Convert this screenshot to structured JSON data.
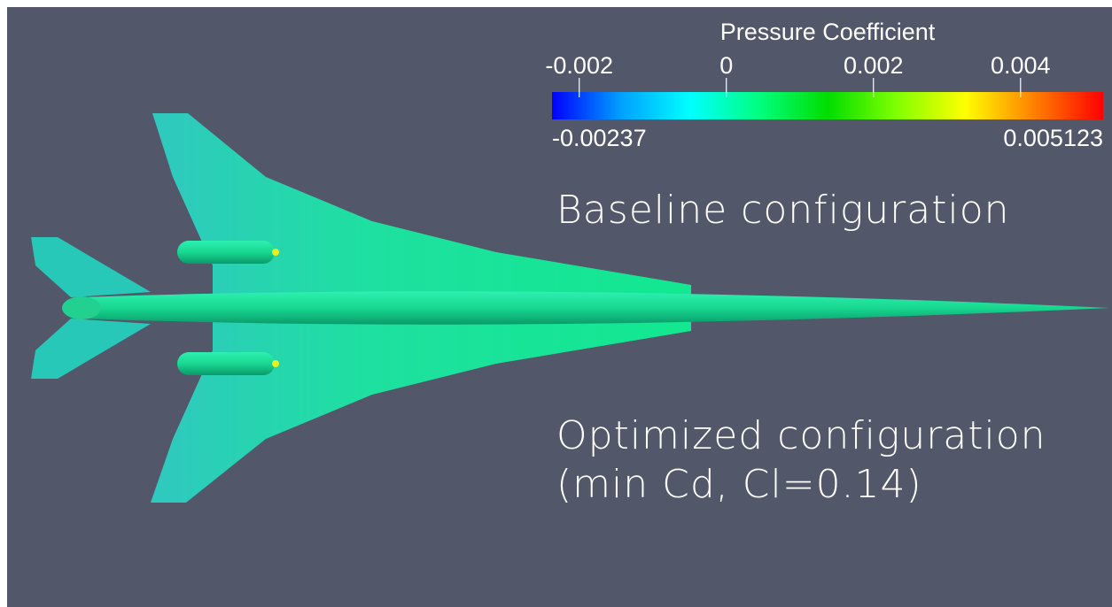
{
  "colorbar": {
    "title": "Pressure Coefficient",
    "range": [
      -0.00237,
      0.005123
    ],
    "ticks": [
      -0.002,
      0,
      0.002,
      0.004
    ],
    "colors": [
      "#0000ff",
      "#00a0ff",
      "#00ffff",
      "#00ff80",
      "#00dd00",
      "#80ff00",
      "#ffff00",
      "#ff8000",
      "#ff0000"
    ]
  },
  "annotations": {
    "baseline": "Baseline configuration",
    "optimized": "Optimized configuration",
    "condition": "(min Cd, Cl=0.14)"
  }
}
